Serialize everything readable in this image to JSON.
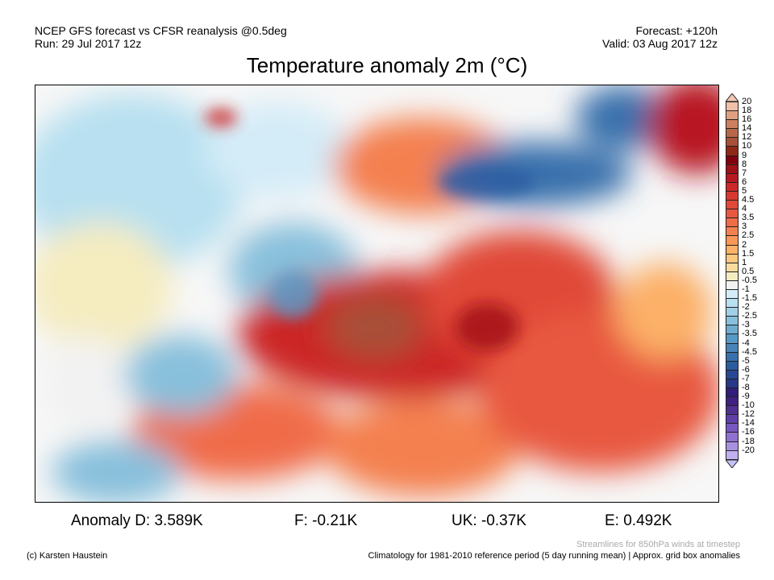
{
  "header": {
    "model": "NCEP GFS forecast vs CFSR reanalysis @0.5deg",
    "run": "Run: 29 Jul 2017 12z",
    "forecast": "Forecast: +120h",
    "valid": "Valid: 03 Aug 2017 12z",
    "title": "Temperature anomaly 2m (°C)"
  },
  "colorbar": {
    "labels": [
      "20",
      "18",
      "16",
      "14",
      "12",
      "10",
      "9",
      "8",
      "7",
      "6",
      "5",
      "4.5",
      "4",
      "3.5",
      "3",
      "2.5",
      "2",
      "1.5",
      "1",
      "0.5",
      "-0.5",
      "-1",
      "-1.5",
      "-2",
      "-2.5",
      "-3",
      "-3.5",
      "-4",
      "-4.5",
      "-5",
      "-6",
      "-7",
      "-8",
      "-9",
      "-10",
      "-12",
      "-14",
      "-16",
      "-18",
      "-20"
    ],
    "colors": [
      "#f0c0a8",
      "#e0a080",
      "#cc8060",
      "#b86848",
      "#a85038",
      "#902818",
      "#800010",
      "#a01018",
      "#b81820",
      "#cc2828",
      "#d83830",
      "#e04838",
      "#e85840",
      "#f06c48",
      "#f48050",
      "#f89858",
      "#fcb068",
      "#fcc880",
      "#f8dca0",
      "#f5ecc0",
      "#f2f2f2",
      "#d4ecf8",
      "#b8e0f0",
      "#a0d0e8",
      "#88c0dc",
      "#70acd0",
      "#5898c4",
      "#4884b8",
      "#3870ac",
      "#2c5ca0",
      "#284894",
      "#283888",
      "#301e78",
      "#402080",
      "#503090",
      "#6040a8",
      "#7858c0",
      "#9070d0",
      "#a890e0",
      "#c0b0f0"
    ],
    "top_triangle_color": "#f0c8b4",
    "bottom_triangle_color": "#c8c0f8"
  },
  "stats": {
    "d": "Anomaly D: 3.589K",
    "f": "F: -0.21K",
    "uk": "UK: -0.37K",
    "e": "E: 0.492K"
  },
  "footer": {
    "credit": "(c) Karsten Haustein",
    "streamlines": "Streamlines for 850hPa winds at timestep",
    "climatology": "Climatology for 1981-2010 reference period (5 day running mean) | Approx. grid box anomalies"
  }
}
